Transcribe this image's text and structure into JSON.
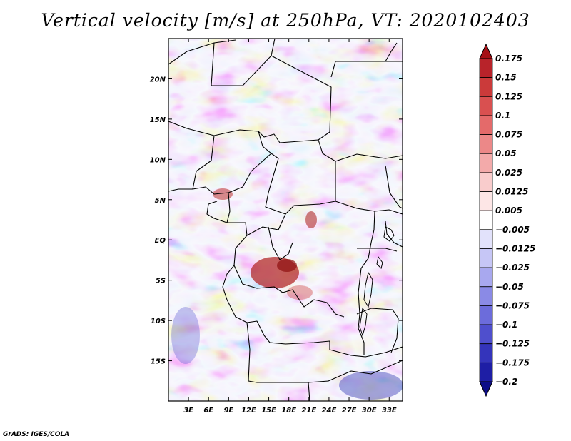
{
  "title": "Vertical velocity [m/s] at 250hPa, VT: 2020102403",
  "credit": "GrADS: IGES/COLA",
  "map": {
    "projection": "lat-lon",
    "lon_range": [
      0,
      35
    ],
    "lat_range": [
      -20,
      25
    ],
    "lat_ticks": [
      {
        "value": 20,
        "label": "20N"
      },
      {
        "value": 15,
        "label": "15N"
      },
      {
        "value": 10,
        "label": "10N"
      },
      {
        "value": 5,
        "label": "5N"
      },
      {
        "value": 0,
        "label": "EQ"
      },
      {
        "value": -5,
        "label": "5S"
      },
      {
        "value": -10,
        "label": "10S"
      },
      {
        "value": -15,
        "label": "15S"
      }
    ],
    "lon_ticks": [
      {
        "value": 3,
        "label": "3E"
      },
      {
        "value": 6,
        "label": "6E"
      },
      {
        "value": 9,
        "label": "9E"
      },
      {
        "value": 12,
        "label": "12E"
      },
      {
        "value": 15,
        "label": "15E"
      },
      {
        "value": 18,
        "label": "18E"
      },
      {
        "value": 21,
        "label": "21E"
      },
      {
        "value": 24,
        "label": "24E"
      },
      {
        "value": 27,
        "label": "27E"
      },
      {
        "value": 30,
        "label": "30E"
      },
      {
        "value": 33,
        "label": "33E"
      }
    ]
  },
  "colorbar": {
    "labels": [
      "0.175",
      "0.15",
      "0.125",
      "0.1",
      "0.075",
      "0.05",
      "0.025",
      "0.0125",
      "0.005",
      "-0.005",
      "-0.0125",
      "-0.025",
      "-0.05",
      "-0.075",
      "-0.1",
      "-0.125",
      "-0.175",
      "-0.2"
    ],
    "colors": [
      "#a50f15",
      "#b8232a",
      "#cb3a3a",
      "#d95050",
      "#e46a6a",
      "#ec8888",
      "#f3aaaa",
      "#f9cccc",
      "#fde6e6",
      "#ffffff",
      "#e2e2fb",
      "#c6c6f6",
      "#a8a8ef",
      "#8a8ae6",
      "#6c6cdb",
      "#4f4fcd",
      "#3434bb",
      "#1e1ea5",
      "#0d0d88"
    ]
  }
}
